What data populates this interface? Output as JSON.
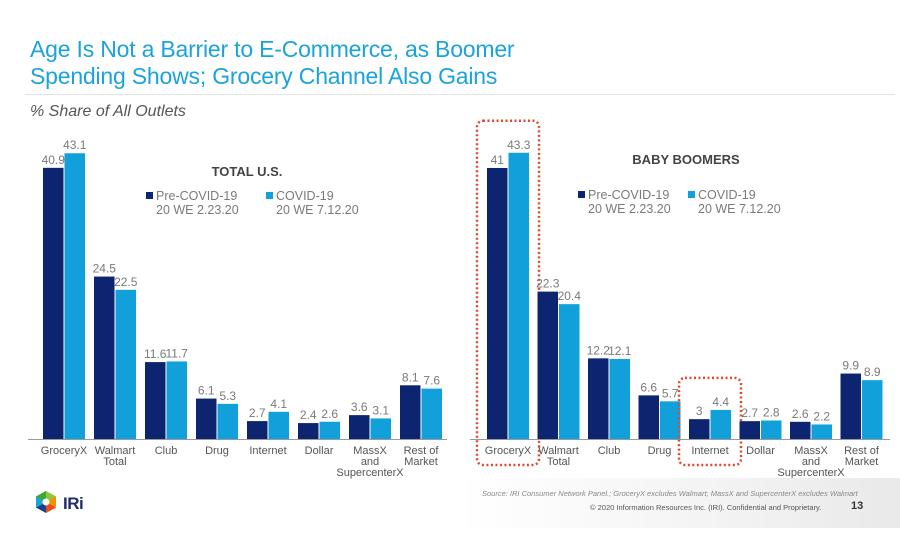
{
  "slide": {
    "title_line1": "Age Is Not a Barrier to E-Commerce, as Boomer",
    "title_line2": "Spending Shows; Grocery Channel Also Gains",
    "subtitle": "% Share of All Outlets",
    "source": "Source: IRI Consumer Network Panel.; GroceryX excludes Walmart; MassX and SupercenterX excludes Walmart",
    "copyright": "© 2020 Information Resources Inc. (IRI). Confidential and Proprietary.",
    "page_number": "13",
    "logo_text": "IRi"
  },
  "colors": {
    "pre_covid": "#0d2470",
    "covid": "#12a0da",
    "highlight": "#e0492a",
    "label": "#7a7a7a",
    "axis": "#9a9a9a"
  },
  "chart_data": [
    {
      "type": "bar",
      "title": "TOTAL U.S.",
      "xlabel": "",
      "ylabel": "",
      "categories": [
        [
          "GroceryX"
        ],
        [
          "Walmart",
          "Total"
        ],
        [
          "Club"
        ],
        [
          "Drug"
        ],
        [
          "Internet"
        ],
        [
          "Dollar"
        ],
        [
          "MassX",
          "and",
          "SupercenterX"
        ],
        [
          "Rest of",
          "Market"
        ]
      ],
      "series": [
        {
          "name": "Pre-COVID-19",
          "name2": "20 WE 2.23.20",
          "values": [
            40.9,
            24.5,
            11.6,
            6.1,
            2.7,
            2.4,
            3.6,
            8.1
          ]
        },
        {
          "name": "COVID-19",
          "name2": "20 WE 7.12.20",
          "values": [
            43.1,
            22.5,
            11.7,
            5.3,
            4.1,
            2.6,
            3.1,
            7.6
          ]
        }
      ],
      "ylim": [
        0,
        45
      ],
      "grid": false,
      "legend": "top-right",
      "highlighted_categories": []
    },
    {
      "type": "bar",
      "title": "BABY BOOMERS",
      "xlabel": "",
      "ylabel": "",
      "categories": [
        [
          "GroceryX"
        ],
        [
          "Walmart",
          "Total"
        ],
        [
          "Club"
        ],
        [
          "Drug"
        ],
        [
          "Internet"
        ],
        [
          "Dollar"
        ],
        [
          "MassX",
          "and",
          "SupercenterX"
        ],
        [
          "Rest of",
          "Market"
        ]
      ],
      "series": [
        {
          "name": "Pre-COVID-19",
          "name2": "20 WE 2.23.20",
          "values": [
            41,
            22.3,
            12.2,
            6.6,
            3,
            2.7,
            2.6,
            9.9
          ]
        },
        {
          "name": "COVID-19",
          "name2": "20 WE 7.12.20",
          "values": [
            43.3,
            20.4,
            12.1,
            5.7,
            4.4,
            2.8,
            2.2,
            8.9
          ]
        }
      ],
      "ylim": [
        0,
        45
      ],
      "grid": false,
      "legend": "top-right",
      "highlighted_categories": [
        "GroceryX",
        "Internet"
      ]
    }
  ]
}
